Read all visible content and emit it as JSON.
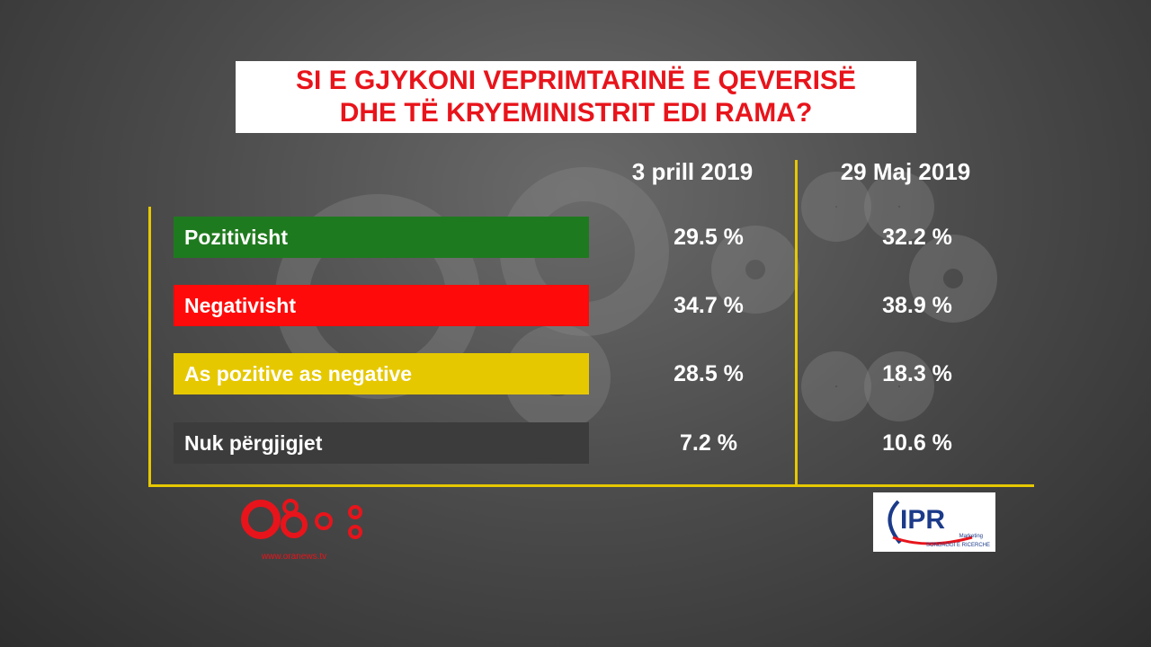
{
  "header": {
    "title_lines": [
      "SI E GJYKONI VEPRIMTARINË E QEVERISË",
      "DHE TË KRYEMINISTRIT EDI RAMA?"
    ]
  },
  "table": {
    "columns": [
      "3 prill 2019",
      "29 Maj 2019"
    ],
    "rows": [
      {
        "label": "Pozitivisht",
        "values": [
          "29.5 %",
          "32.2 %"
        ]
      },
      {
        "label": "Negativisht",
        "values": [
          "34.7 %",
          "38.9 %"
        ]
      },
      {
        "label": "As pozitive as negative",
        "values": [
          "28.5 %",
          "18.3 %"
        ]
      },
      {
        "label": "Nuk përgjigjet",
        "values": [
          "7.2 %",
          "10.6 %"
        ]
      }
    ]
  },
  "footer": {
    "left_logo_url": "www.oranews.tv",
    "right_logo": {
      "name": "IPR",
      "line1": "Marketing",
      "line2": "SONDAGGI E RICERCHE"
    }
  }
}
